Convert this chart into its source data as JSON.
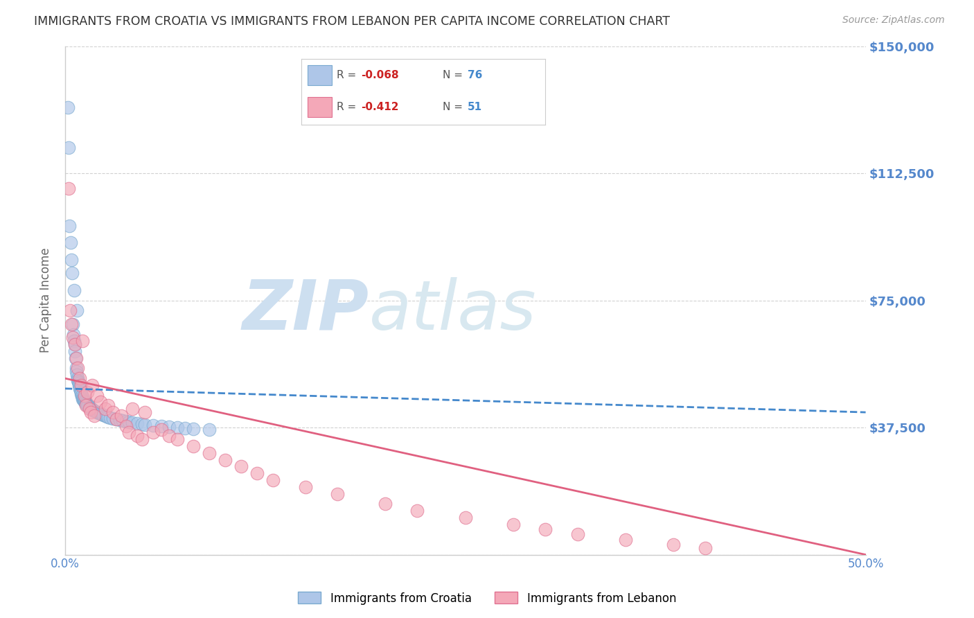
{
  "title": "IMMIGRANTS FROM CROATIA VS IMMIGRANTS FROM LEBANON PER CAPITA INCOME CORRELATION CHART",
  "source": "Source: ZipAtlas.com",
  "ylabel": "Per Capita Income",
  "xlim": [
    0.0,
    0.5
  ],
  "ylim": [
    0,
    150000
  ],
  "yticks": [
    0,
    37500,
    75000,
    112500,
    150000
  ],
  "ytick_labels": [
    "",
    "$37,500",
    "$75,000",
    "$112,500",
    "$150,000"
  ],
  "xticks": [
    0.0,
    0.1,
    0.2,
    0.3,
    0.4,
    0.5
  ],
  "xtick_labels": [
    "0.0%",
    "",
    "",
    "",
    "",
    "50.0%"
  ],
  "croatia_color": "#aec6e8",
  "croatia_edge": "#7aaad0",
  "lebanon_color": "#f4a8b8",
  "lebanon_edge": "#e07090",
  "croatia_R": -0.068,
  "croatia_N": 76,
  "lebanon_R": -0.412,
  "lebanon_N": 51,
  "watermark_zip": "ZIP",
  "watermark_atlas": "atlas",
  "watermark_color": "#cddff0",
  "legend_label_croatia": "Immigrants from Croatia",
  "legend_label_lebanon": "Immigrants from Lebanon",
  "axis_label_color": "#5588cc",
  "title_color": "#333333",
  "source_color": "#999999",
  "ylabel_color": "#666666",
  "croatia_line_color": "#4488cc",
  "lebanon_line_color": "#e06080",
  "croatia_line_style": "--",
  "lebanon_line_style": "-",
  "croatia_scatter_x": [
    0.0018,
    0.0022,
    0.0028,
    0.0035,
    0.004,
    0.0045,
    0.005,
    0.0052,
    0.0055,
    0.0058,
    0.006,
    0.0062,
    0.0065,
    0.0068,
    0.007,
    0.0072,
    0.0075,
    0.0078,
    0.008,
    0.0082,
    0.0085,
    0.0088,
    0.009,
    0.0092,
    0.0095,
    0.0098,
    0.01,
    0.0102,
    0.0105,
    0.0108,
    0.011,
    0.0112,
    0.0115,
    0.0118,
    0.012,
    0.0122,
    0.0125,
    0.0128,
    0.013,
    0.0135,
    0.014,
    0.0145,
    0.015,
    0.0155,
    0.016,
    0.0165,
    0.017,
    0.0175,
    0.018,
    0.019,
    0.02,
    0.021,
    0.022,
    0.023,
    0.024,
    0.025,
    0.026,
    0.027,
    0.028,
    0.03,
    0.032,
    0.034,
    0.036,
    0.038,
    0.04,
    0.042,
    0.045,
    0.048,
    0.05,
    0.055,
    0.06,
    0.065,
    0.07,
    0.075,
    0.08,
    0.09
  ],
  "croatia_scatter_y": [
    132000,
    120000,
    97000,
    92000,
    87000,
    83000,
    68000,
    65000,
    63000,
    78000,
    62000,
    60000,
    58000,
    55000,
    54000,
    72000,
    53000,
    52000,
    51500,
    51000,
    50500,
    50000,
    49500,
    49000,
    48500,
    48000,
    47500,
    47000,
    47000,
    46500,
    46000,
    46000,
    45800,
    45500,
    45200,
    45000,
    44800,
    44600,
    44400,
    44200,
    44000,
    43800,
    43600,
    43400,
    43200,
    43000,
    42800,
    42600,
    42400,
    42200,
    42000,
    41800,
    41600,
    41400,
    41200,
    41000,
    40800,
    40600,
    40400,
    40200,
    40000,
    39800,
    39600,
    39400,
    39200,
    39000,
    38800,
    38600,
    38400,
    38200,
    38000,
    37800,
    37600,
    37400,
    37200,
    37000
  ],
  "lebanon_scatter_x": [
    0.002,
    0.003,
    0.004,
    0.005,
    0.006,
    0.007,
    0.008,
    0.009,
    0.01,
    0.011,
    0.012,
    0.013,
    0.014,
    0.015,
    0.016,
    0.017,
    0.018,
    0.02,
    0.022,
    0.025,
    0.027,
    0.03,
    0.032,
    0.035,
    0.038,
    0.04,
    0.042,
    0.045,
    0.048,
    0.05,
    0.055,
    0.06,
    0.065,
    0.07,
    0.08,
    0.09,
    0.1,
    0.11,
    0.12,
    0.13,
    0.15,
    0.17,
    0.2,
    0.22,
    0.25,
    0.28,
    0.3,
    0.32,
    0.35,
    0.38,
    0.4
  ],
  "lebanon_scatter_y": [
    108000,
    72000,
    68000,
    64000,
    62000,
    58000,
    55000,
    52000,
    50000,
    63000,
    47000,
    44000,
    48000,
    43000,
    42000,
    50000,
    41000,
    47000,
    45000,
    43000,
    44000,
    42000,
    40000,
    41000,
    38000,
    36000,
    43000,
    35000,
    34000,
    42000,
    36000,
    37000,
    35000,
    34000,
    32000,
    30000,
    28000,
    26000,
    24000,
    22000,
    20000,
    18000,
    15000,
    13000,
    11000,
    9000,
    7500,
    6000,
    4500,
    3000,
    2000
  ]
}
